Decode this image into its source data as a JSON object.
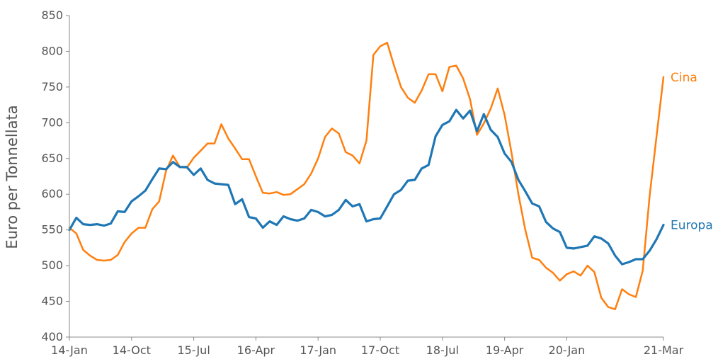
{
  "chart_data": {
    "type": "line",
    "title": "",
    "xlabel": "",
    "ylabel": "Euro per Tonnellata",
    "ylim": [
      400,
      850
    ],
    "yticks": [
      400,
      450,
      500,
      550,
      600,
      650,
      700,
      750,
      800,
      850
    ],
    "grid": false,
    "legend": "direct labels at line ends (right)",
    "x_tick_labels": [
      "14-Jan",
      "14-Oct",
      "15-Jul",
      "16-Apr",
      "17-Jan",
      "17-Oct",
      "18-Jul",
      "19-Apr",
      "20-Jan",
      "21-Mar"
    ],
    "x_tick_index": [
      0,
      9,
      18,
      27,
      36,
      45,
      54,
      63,
      72,
      86
    ],
    "x_range": [
      0,
      86
    ],
    "series": [
      {
        "name": "Cina",
        "color": "#ff7f0e",
        "values": [
          553,
          545,
          522,
          514,
          508,
          507,
          508,
          515,
          533,
          545,
          553,
          553,
          579,
          590,
          633,
          654,
          638,
          637,
          651,
          661,
          671,
          671,
          698,
          678,
          664,
          649,
          649,
          625,
          602,
          601,
          603,
          599,
          600,
          607,
          614,
          629,
          650,
          680,
          692,
          685,
          659,
          654,
          643,
          675,
          795,
          807,
          812,
          780,
          750,
          735,
          728,
          745,
          768,
          768,
          744,
          778,
          780,
          762,
          733,
          683,
          699,
          720,
          748,
          711,
          658,
          600,
          550,
          511,
          508,
          497,
          490,
          479,
          488,
          492,
          486,
          500,
          491,
          455,
          442,
          439,
          467,
          460,
          456,
          493,
          598,
          681,
          764
        ]
      },
      {
        "name": "Europa",
        "color": "#1f77b4",
        "values": [
          550,
          567,
          558,
          557,
          558,
          556,
          559,
          576,
          575,
          590,
          597,
          605,
          621,
          636,
          635,
          645,
          638,
          638,
          627,
          636,
          620,
          615,
          614,
          613,
          586,
          593,
          568,
          566,
          553,
          562,
          557,
          569,
          565,
          563,
          566,
          578,
          575,
          569,
          571,
          578,
          592,
          583,
          586,
          562,
          565,
          566,
          583,
          600,
          606,
          619,
          620,
          636,
          641,
          681,
          697,
          702,
          718,
          706,
          717,
          688,
          712,
          690,
          680,
          657,
          645,
          620,
          604,
          587,
          583,
          561,
          552,
          547,
          525,
          524,
          526,
          528,
          541,
          538,
          531,
          514,
          502,
          505,
          509,
          509,
          521,
          537,
          557
        ]
      }
    ]
  }
}
